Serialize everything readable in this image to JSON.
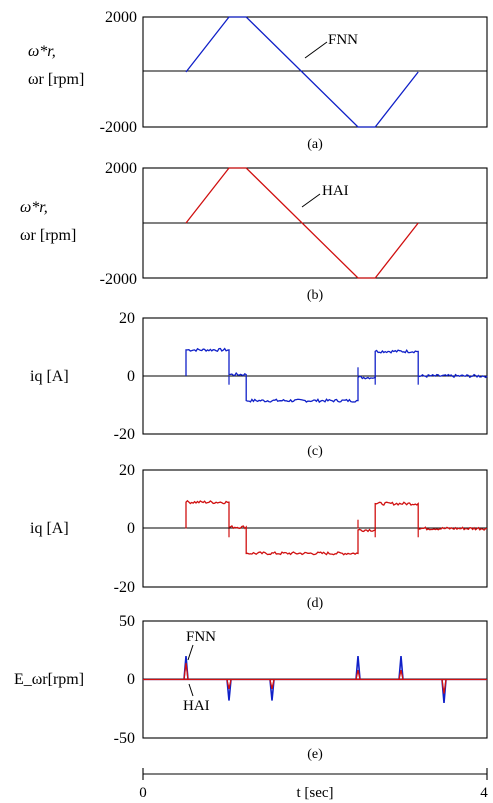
{
  "colors": {
    "fnn": "#1020c8",
    "hai": "#d01010",
    "axis": "#000000"
  },
  "x_axis": {
    "min": 0,
    "max": 4,
    "ticks": [
      "0",
      "t [sec]",
      "4"
    ]
  },
  "chart_data": [
    {
      "type": "line",
      "caption": "(a)",
      "ylabel": [
        "ω*r,",
        "ωr [rpm]"
      ],
      "ylim": [
        -2000,
        2000
      ],
      "yticks": [
        "2000",
        "-2000"
      ],
      "annotation": "FNN",
      "series": [
        {
          "name": "FNN",
          "color_key": "fnn",
          "x": [
            0.5,
            1.0,
            1.2,
            2.5,
            2.7,
            3.2
          ],
          "y": [
            0,
            2000,
            2000,
            -2000,
            -2000,
            0
          ]
        }
      ]
    },
    {
      "type": "line",
      "caption": "(b)",
      "ylabel": [
        "ω*r,",
        "ωr [rpm]"
      ],
      "ylim": [
        -2000,
        2000
      ],
      "yticks": [
        "2000",
        "-2000"
      ],
      "annotation": "HAI",
      "series": [
        {
          "name": "HAI",
          "color_key": "hai",
          "x": [
            0.5,
            1.0,
            1.2,
            2.5,
            2.7,
            3.2
          ],
          "y": [
            0,
            2000,
            2000,
            -2000,
            -2000,
            0
          ]
        }
      ]
    },
    {
      "type": "line",
      "caption": "(c)",
      "ylabel": [
        "iq [A]"
      ],
      "ylim": [
        -20,
        20
      ],
      "yticks": [
        "20",
        "0",
        "-20"
      ],
      "series": [
        {
          "name": "FNN",
          "color_key": "fnn",
          "x": [
            0.5,
            0.5,
            1.0,
            1.0,
            1.2,
            1.2,
            2.5,
            2.5,
            2.7,
            2.7,
            3.2,
            3.2,
            4.0
          ],
          "y": [
            0,
            9,
            9,
            0.5,
            0.5,
            -8.5,
            -8.5,
            -0.5,
            -0.5,
            8.5,
            8.5,
            0,
            0
          ]
        }
      ]
    },
    {
      "type": "line",
      "caption": "(d)",
      "ylabel": [
        "iq [A]"
      ],
      "ylim": [
        -20,
        20
      ],
      "yticks": [
        "20",
        "0",
        "-20"
      ],
      "series": [
        {
          "name": "HAI",
          "color_key": "hai",
          "x": [
            0.5,
            0.5,
            1.0,
            1.0,
            1.2,
            1.2,
            2.5,
            2.5,
            2.7,
            2.7,
            3.2,
            3.2,
            4.0
          ],
          "y": [
            0,
            9,
            9,
            0.5,
            0.5,
            -8.5,
            -8.5,
            -0.5,
            -0.5,
            8.5,
            8.5,
            0,
            0
          ]
        }
      ]
    },
    {
      "type": "line",
      "caption": "(e)",
      "ylabel": [
        "E_ωr[rpm]"
      ],
      "ylim": [
        -50,
        50
      ],
      "yticks": [
        "50",
        "0",
        "-50"
      ],
      "annotations": [
        "FNN",
        "HAI"
      ],
      "series": [
        {
          "name": "FNN",
          "color_key": "fnn",
          "spikes": [
            [
              0.5,
              20
            ],
            [
              1.0,
              -18
            ],
            [
              1.5,
              -18
            ],
            [
              2.5,
              20
            ],
            [
              3.0,
              20
            ],
            [
              3.5,
              -20
            ]
          ]
        },
        {
          "name": "HAI",
          "color_key": "hai",
          "spikes": [
            [
              0.5,
              14
            ],
            [
              1.0,
              -8
            ],
            [
              1.5,
              -8
            ],
            [
              2.5,
              8
            ],
            [
              3.0,
              8
            ],
            [
              3.5,
              -12
            ]
          ]
        }
      ]
    }
  ]
}
